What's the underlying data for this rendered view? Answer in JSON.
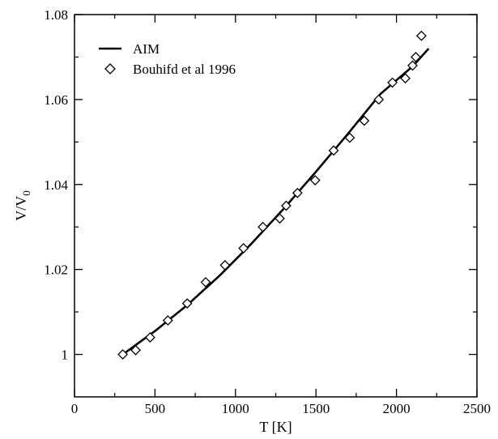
{
  "chart_data": {
    "type": "scatter",
    "title": "",
    "xlabel": "T [K]",
    "ylabel": {
      "main": "V/V",
      "sub": "0"
    },
    "xlim": [
      0,
      2500
    ],
    "ylim": [
      0.99,
      1.08
    ],
    "x_ticks": [
      0,
      500,
      1000,
      1500,
      2000,
      2500
    ],
    "x_tick_labels": [
      "0",
      "500",
      "1000",
      "1500",
      "2000",
      "2500"
    ],
    "y_ticks": [
      1.0,
      1.02,
      1.04,
      1.06,
      1.08
    ],
    "y_tick_labels": [
      "1",
      "1.02",
      "1.04",
      "1.06",
      "1.08"
    ],
    "grid": false,
    "legend_position": "top-left",
    "series": [
      {
        "name": "AIM",
        "kind": "line",
        "color": "#000000",
        "x": [
          300,
          500,
          700,
          900,
          1100,
          1300,
          1500,
          1700,
          1900,
          2100,
          2200
        ],
        "y": [
          1.0,
          1.0055,
          1.0116,
          1.0185,
          1.0261,
          1.0343,
          1.043,
          1.052,
          1.0613,
          1.0678,
          1.072
        ]
      },
      {
        "name": "Bouhifd et al 1996",
        "kind": "scatter",
        "marker": "diamond-open",
        "color": "#000000",
        "x": [
          300,
          380,
          470,
          580,
          700,
          815,
          935,
          1050,
          1170,
          1275,
          1315,
          1385,
          1495,
          1610,
          1710,
          1800,
          1890,
          1975,
          2055,
          2100,
          2120,
          2155
        ],
        "y": [
          1.0,
          1.001,
          1.004,
          1.008,
          1.012,
          1.017,
          1.021,
          1.025,
          1.03,
          1.032,
          1.035,
          1.038,
          1.041,
          1.048,
          1.051,
          1.055,
          1.06,
          1.064,
          1.065,
          1.068,
          1.07,
          1.075
        ]
      }
    ]
  }
}
